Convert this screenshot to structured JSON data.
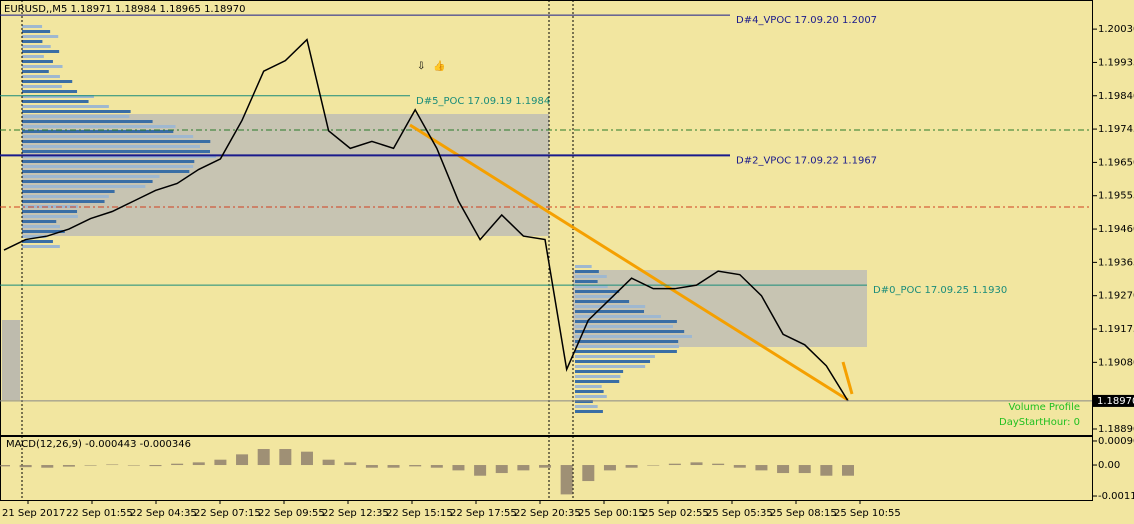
{
  "header": {
    "title": "EURUSD,,M5  1.18971 1.18984 1.18965 1.18970"
  },
  "chart_data": {
    "type": "line",
    "color": "#000000",
    "close": [
      1.194,
      1.1943,
      1.1944,
      1.1946,
      1.1949,
      1.1951,
      1.1954,
      1.1957,
      1.1959,
      1.1963,
      1.1966,
      1.1977,
      1.1991,
      1.1994,
      1.2,
      1.1974,
      1.1969,
      1.1971,
      1.1969,
      1.198,
      1.1969,
      1.1954,
      1.1943,
      1.195,
      1.1944,
      1.1943,
      1.1906,
      1.192,
      1.1926,
      1.1932,
      1.1929,
      1.1929,
      1.193,
      1.1934,
      1.1933,
      1.1927,
      1.1916,
      1.1913,
      1.1907,
      1.1897
    ],
    "ylim": [
      1.1887,
      1.20113
    ],
    "yticks": [
      {
        "value": 1.2003,
        "label": "1.20030"
      },
      {
        "value": 1.19935,
        "label": "1.19935"
      },
      {
        "value": 1.1984,
        "label": "1.19840"
      },
      {
        "value": 1.19745,
        "label": "1.19745"
      },
      {
        "value": 1.1965,
        "label": "1.19650"
      },
      {
        "value": 1.19555,
        "label": "1.19555"
      },
      {
        "value": 1.1946,
        "label": "1.19460"
      },
      {
        "value": 1.19365,
        "label": "1.19365"
      },
      {
        "value": 1.1927,
        "label": "1.19270"
      },
      {
        "value": 1.19175,
        "label": "1.19175"
      },
      {
        "value": 1.1908,
        "label": "1.19080"
      },
      {
        "value": 1.1889,
        "label": "1.18890"
      }
    ],
    "current_price": {
      "value": 1.1897,
      "label": "1.18970"
    },
    "xlabels": [
      "21 Sep 2017",
      "22 Sep 01:55",
      "22 Sep 04:35",
      "22 Sep 07:15",
      "22 Sep 09:55",
      "22 Sep 12:35",
      "22 Sep 15:15",
      "22 Sep 17:55",
      "22 Sep 20:35",
      "25 Sep 00:15",
      "25 Sep 02:55",
      "25 Sep 05:35",
      "25 Sep 08:15",
      "25 Sep 10:55"
    ],
    "levels": [
      {
        "label": "D#4_VPOC 17.09.20 1.2007",
        "value": 1.2007,
        "color": "#1a1a8c"
      },
      {
        "label": "D#5_POC 17.09.19 1.1984",
        "value": 1.1984,
        "color": "#1a8c7a"
      },
      {
        "label": "D#2_VPOC 17.09.22 1.1967",
        "value": 1.1967,
        "color": "#1a1a8c"
      },
      {
        "label": "D#0_POC 17.09.25 1.1930",
        "value": 1.193,
        "color": "#1a8c7a"
      }
    ],
    "indicator_labels": [
      "Volume Profile",
      "DayStartHour: 0"
    ],
    "macd": {
      "title": "MACD(12,26,9) -0.000443 -0.000346",
      "values": [
        -5e-05,
        -8e-05,
        -0.0001,
        -6e-05,
        -2e-05,
        2e-05,
        0,
        -4e-05,
        5e-05,
        0.0001,
        0.0002,
        0.0004,
        0.0006,
        0.0006,
        0.0005,
        0.0002,
        0.0001,
        -0.0001,
        -0.0001,
        -5e-05,
        -0.0001,
        -0.0002,
        -0.0004,
        -0.0003,
        -0.0002,
        -0.0001,
        -0.0011,
        -0.0006,
        -0.0002,
        -0.0001,
        0,
        5e-05,
        0.0001,
        5e-05,
        -0.0001,
        -0.0002,
        -0.0003,
        -0.0003,
        -0.0004,
        -0.0004
      ],
      "ylim": [
        -0.00131,
        0.00105
      ],
      "yticks": [
        {
          "value": 0.000901,
          "label": "0.000901"
        },
        {
          "value": 0,
          "label": "0.00"
        },
        {
          "value": -0.001161,
          "label": "-0.001161"
        }
      ]
    }
  }
}
